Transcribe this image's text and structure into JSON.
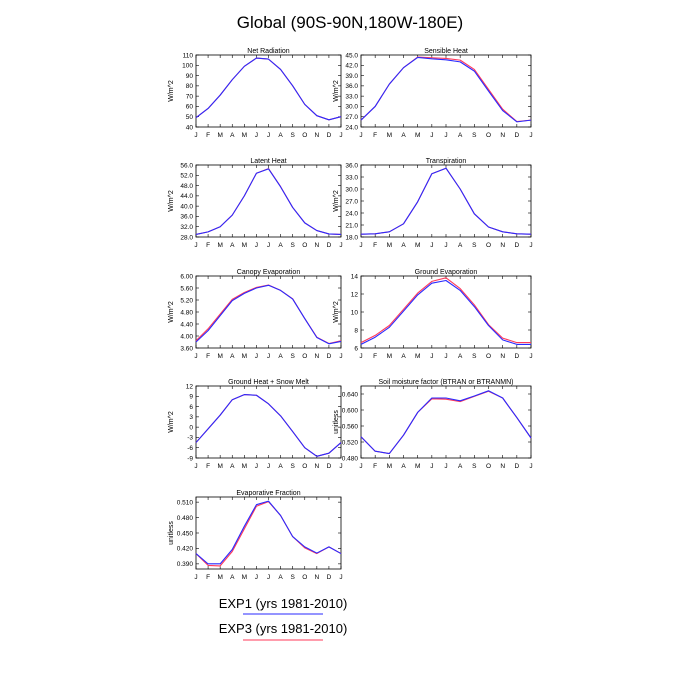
{
  "figure": {
    "title": "Global (90S-90N,180W-180E)",
    "months": [
      "J",
      "F",
      "M",
      "A",
      "M",
      "J",
      "J",
      "A",
      "S",
      "O",
      "N",
      "D",
      "J"
    ],
    "legend": [
      {
        "label": "EXP1 (yrs 1981-2010)",
        "color": "#2a2aff"
      },
      {
        "label": "EXP3 (yrs 1981-2010)",
        "color": "#ff3a5a"
      }
    ]
  },
  "chart_data": [
    {
      "type": "line",
      "title": "Net Radiation",
      "ylabel": "W/m^2",
      "ylim": [
        40,
        110
      ],
      "yticks": [
        "40",
        "50",
        "60",
        "70",
        "80",
        "90",
        "100",
        "110"
      ],
      "x": [
        "J",
        "F",
        "M",
        "A",
        "M",
        "J",
        "J",
        "A",
        "S",
        "O",
        "N",
        "D",
        "J"
      ],
      "series": [
        {
          "name": "EXP1 (yrs 1981-2010)",
          "color": "#2a2aff",
          "values": [
            49,
            58,
            71,
            86,
            99,
            107,
            106,
            96,
            80,
            62,
            51,
            47,
            50
          ]
        },
        {
          "name": "EXP3 (yrs 1981-2010)",
          "color": "#ff3a5a",
          "values": [
            49,
            58,
            71,
            86,
            99,
            107,
            106,
            96,
            80,
            62,
            51,
            47,
            50
          ]
        }
      ]
    },
    {
      "type": "line",
      "title": "Sensible Heat",
      "ylabel": "W/m^2",
      "ylim": [
        24,
        45
      ],
      "yticks": [
        "24.0",
        "27.0",
        "30.0",
        "33.0",
        "36.0",
        "39.0",
        "42.0",
        "45.0"
      ],
      "x": [
        "J",
        "F",
        "M",
        "A",
        "M",
        "J",
        "J",
        "A",
        "S",
        "O",
        "N",
        "D",
        "J"
      ],
      "series": [
        {
          "name": "EXP1 (yrs 1981-2010)",
          "color": "#2a2aff",
          "values": [
            26.0,
            30.0,
            36.5,
            41.3,
            44.3,
            43.9,
            43.6,
            43.0,
            40.3,
            34.5,
            28.8,
            25.5,
            26.0
          ]
        },
        {
          "name": "EXP3 (yrs 1981-2010)",
          "color": "#ff3a5a",
          "values": [
            26.0,
            30.0,
            36.5,
            41.3,
            44.4,
            44.2,
            44.0,
            43.5,
            40.8,
            35.0,
            29.2,
            25.6,
            26.0
          ]
        }
      ]
    },
    {
      "type": "line",
      "title": "Latent Heat",
      "ylabel": "W/m^2",
      "ylim": [
        28,
        56
      ],
      "yticks": [
        "28.0",
        "32.0",
        "36.0",
        "40.0",
        "44.0",
        "48.0",
        "52.0",
        "56.0"
      ],
      "x": [
        "J",
        "F",
        "M",
        "A",
        "M",
        "J",
        "J",
        "A",
        "S",
        "O",
        "N",
        "D",
        "J"
      ],
      "series": [
        {
          "name": "EXP1 (yrs 1981-2010)",
          "color": "#2a2aff",
          "values": [
            29.0,
            30.0,
            32.0,
            36.5,
            44.0,
            52.8,
            54.5,
            47.5,
            39.5,
            33.5,
            30.5,
            29.2,
            29.0
          ]
        },
        {
          "name": "EXP3 (yrs 1981-2010)",
          "color": "#ff3a5a",
          "values": [
            29.0,
            30.0,
            32.0,
            36.5,
            44.0,
            52.8,
            54.6,
            47.6,
            39.5,
            33.5,
            30.5,
            29.2,
            29.0
          ]
        }
      ]
    },
    {
      "type": "line",
      "title": "Transpiration",
      "ylabel": "W/m^2",
      "ylim": [
        18,
        36
      ],
      "yticks": [
        "18.0",
        "21.0",
        "24.0",
        "27.0",
        "30.0",
        "33.0",
        "36.0"
      ],
      "x": [
        "J",
        "F",
        "M",
        "A",
        "M",
        "J",
        "J",
        "A",
        "S",
        "O",
        "N",
        "D",
        "J"
      ],
      "series": [
        {
          "name": "EXP1 (yrs 1981-2010)",
          "color": "#2a2aff",
          "values": [
            18.7,
            18.8,
            19.3,
            21.3,
            26.8,
            33.8,
            35.2,
            30.0,
            23.8,
            20.5,
            19.3,
            18.8,
            18.7
          ]
        },
        {
          "name": "EXP3 (yrs 1981-2010)",
          "color": "#ff3a5a",
          "values": [
            18.7,
            18.8,
            19.3,
            21.3,
            26.8,
            33.8,
            35.2,
            30.0,
            23.8,
            20.5,
            19.3,
            18.8,
            18.7
          ]
        }
      ]
    },
    {
      "type": "line",
      "title": "Canopy Evaporation",
      "ylabel": "W/m^2",
      "ylim": [
        3.6,
        6.0
      ],
      "yticks": [
        "3.60",
        "4.00",
        "4.40",
        "4.80",
        "5.20",
        "5.60",
        "6.00"
      ],
      "x": [
        "J",
        "F",
        "M",
        "A",
        "M",
        "J",
        "J",
        "A",
        "S",
        "O",
        "N",
        "D",
        "J"
      ],
      "series": [
        {
          "name": "EXP1 (yrs 1981-2010)",
          "color": "#2a2aff",
          "values": [
            3.8,
            4.18,
            4.68,
            5.18,
            5.42,
            5.6,
            5.69,
            5.52,
            5.23,
            4.58,
            3.95,
            3.74,
            3.82
          ]
        },
        {
          "name": "EXP3 (yrs 1981-2010)",
          "color": "#ff3a5a",
          "values": [
            3.84,
            4.24,
            4.73,
            5.22,
            5.45,
            5.62,
            5.7,
            5.52,
            5.24,
            4.58,
            3.96,
            3.75,
            3.84
          ]
        }
      ]
    },
    {
      "type": "line",
      "title": "Ground Evaporation",
      "ylabel": "W/m^2",
      "ylim": [
        6,
        14
      ],
      "yticks": [
        "6",
        "8",
        "10",
        "12",
        "14"
      ],
      "x": [
        "J",
        "F",
        "M",
        "A",
        "M",
        "J",
        "J",
        "A",
        "S",
        "O",
        "N",
        "D",
        "J"
      ],
      "series": [
        {
          "name": "EXP1 (yrs 1981-2010)",
          "color": "#2a2aff",
          "values": [
            6.4,
            7.2,
            8.3,
            10.1,
            11.9,
            13.2,
            13.5,
            12.4,
            10.6,
            8.5,
            6.9,
            6.4,
            6.4
          ]
        },
        {
          "name": "EXP3 (yrs 1981-2010)",
          "color": "#ff3a5a",
          "values": [
            6.6,
            7.4,
            8.5,
            10.3,
            12.1,
            13.4,
            13.8,
            12.6,
            10.8,
            8.6,
            7.1,
            6.6,
            6.6
          ]
        }
      ]
    },
    {
      "type": "line",
      "title": "Ground Heat + Snow Melt",
      "ylabel": "W/m^2",
      "ylim": [
        -9,
        12
      ],
      "yticks": [
        "-9",
        "-6",
        "-3",
        "0",
        "3",
        "6",
        "9",
        "12"
      ],
      "x": [
        "J",
        "F",
        "M",
        "A",
        "M",
        "J",
        "J",
        "A",
        "S",
        "O",
        "N",
        "D",
        "J"
      ],
      "series": [
        {
          "name": "EXP1 (yrs 1981-2010)",
          "color": "#2a2aff",
          "values": [
            -4.5,
            -0.5,
            3.5,
            8.0,
            9.5,
            9.3,
            6.8,
            3.3,
            -1.3,
            -6.0,
            -8.5,
            -7.6,
            -4.5
          ]
        },
        {
          "name": "EXP3 (yrs 1981-2010)",
          "color": "#ff3a5a",
          "values": [
            -4.5,
            -0.5,
            3.5,
            8.0,
            9.5,
            9.3,
            6.8,
            3.3,
            -1.3,
            -6.0,
            -8.5,
            -7.6,
            -4.5
          ]
        }
      ]
    },
    {
      "type": "line",
      "title": "Soil moisture factor (BTRAN or BTRANMN)",
      "ylabel": "unitless",
      "ylim": [
        0.48,
        0.66
      ],
      "yticks": [
        "0.480",
        "0.520",
        "0.560",
        "0.600",
        "0.640"
      ],
      "x": [
        "J",
        "F",
        "M",
        "A",
        "M",
        "J",
        "J",
        "A",
        "S",
        "O",
        "N",
        "D",
        "J"
      ],
      "series": [
        {
          "name": "EXP1 (yrs 1981-2010)",
          "color": "#2a2aff",
          "values": [
            0.533,
            0.497,
            0.491,
            0.537,
            0.594,
            0.63,
            0.63,
            0.623,
            0.635,
            0.648,
            0.63,
            0.581,
            0.53
          ]
        },
        {
          "name": "EXP3 (yrs 1981-2010)",
          "color": "#ff3a5a",
          "values": [
            0.533,
            0.497,
            0.491,
            0.537,
            0.594,
            0.628,
            0.627,
            0.621,
            0.634,
            0.647,
            0.63,
            0.581,
            0.53
          ]
        }
      ]
    },
    {
      "type": "line",
      "title": "Evaporative Fraction",
      "ylabel": "unitless",
      "ylim": [
        0.38,
        0.52
      ],
      "yticks": [
        "0.390",
        "0.420",
        "0.450",
        "0.480",
        "0.510"
      ],
      "x": [
        "J",
        "F",
        "M",
        "A",
        "M",
        "J",
        "J",
        "A",
        "S",
        "O",
        "N",
        "D",
        "J"
      ],
      "series": [
        {
          "name": "EXP1 (yrs 1981-2010)",
          "color": "#2a2aff",
          "values": [
            0.41,
            0.39,
            0.39,
            0.418,
            0.463,
            0.505,
            0.512,
            0.484,
            0.443,
            0.423,
            0.411,
            0.423,
            0.41
          ]
        },
        {
          "name": "EXP3 (yrs 1981-2010)",
          "color": "#ff3a5a",
          "values": [
            0.41,
            0.387,
            0.386,
            0.414,
            0.458,
            0.502,
            0.511,
            0.484,
            0.443,
            0.421,
            0.41,
            0.423,
            0.41
          ]
        }
      ]
    }
  ]
}
